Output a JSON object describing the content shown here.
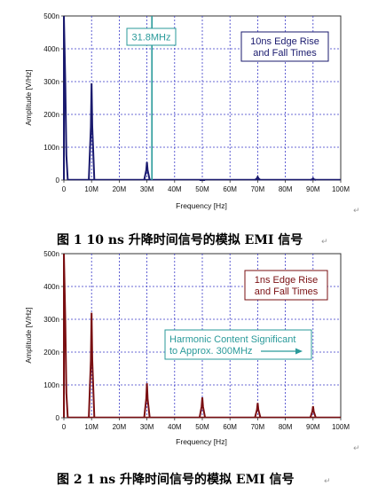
{
  "chart_data": [
    {
      "type": "line",
      "xlabel": "Frequency [Hz]",
      "ylabel": "Amplitude [V/Hz]",
      "x_ticks": [
        "0",
        "10M",
        "20M",
        "30M",
        "40M",
        "50M",
        "60M",
        "70M",
        "80M",
        "90M",
        "100M"
      ],
      "y_ticks": [
        "0",
        "100n",
        "200n",
        "300n",
        "400n",
        "500n"
      ],
      "xlim": [
        0,
        100
      ],
      "ylim": [
        0,
        500
      ],
      "grid": true,
      "series_color": "#1a1a6e",
      "marker_color": "#2a9a9a",
      "peaks": [
        {
          "x": 10,
          "y": 295
        },
        {
          "x": 30,
          "y": 55
        },
        {
          "x": 50,
          "y": 0
        },
        {
          "x": 70,
          "y": 10
        },
        {
          "x": 90,
          "y": 5
        }
      ],
      "dc_spike": 500,
      "marker": {
        "x": 31.8,
        "label": "31.8MHz"
      },
      "annotation": {
        "lines": [
          "10ns Edge Rise",
          "and Fall Times"
        ],
        "color": "#1a1a6e"
      }
    },
    {
      "type": "line",
      "xlabel": "Frequency [Hz]",
      "ylabel": "Amplitude [V/Hz]",
      "x_ticks": [
        "0",
        "10M",
        "20M",
        "30M",
        "40M",
        "50M",
        "60M",
        "70M",
        "80M",
        "90M",
        "100M"
      ],
      "y_ticks": [
        "0",
        "100n",
        "200n",
        "300n",
        "400n",
        "500n"
      ],
      "xlim": [
        0,
        100
      ],
      "ylim": [
        0,
        500
      ],
      "grid": true,
      "series_color": "#7a0f12",
      "marker_color": "#2a9a9a",
      "peaks": [
        {
          "x": 10,
          "y": 320
        },
        {
          "x": 30,
          "y": 105
        },
        {
          "x": 50,
          "y": 62
        },
        {
          "x": 70,
          "y": 45
        },
        {
          "x": 90,
          "y": 35
        }
      ],
      "dc_spike": 500,
      "annotation": {
        "lines": [
          "1ns Edge Rise",
          "and Fall Times"
        ],
        "color": "#7a0f12"
      },
      "annotation2": {
        "lines": [
          "Harmonic Content Significant",
          "to Approx. 300MHz"
        ],
        "color": "#2a9a9a"
      }
    }
  ],
  "captions": {
    "fig1": "图 1 10 ns 升降时间信号的模拟 EMI 信号",
    "fig2": "图 2 1 ns 升降时间信号的模拟 EMI 信号"
  },
  "para_mark": "↵"
}
